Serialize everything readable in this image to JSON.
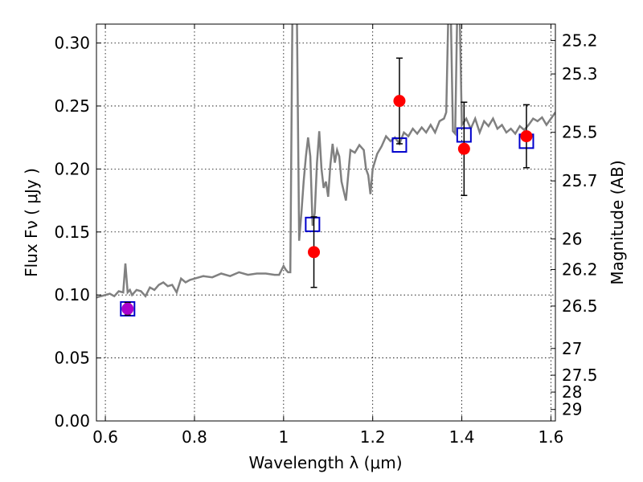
{
  "chart_data": {
    "type": "scatter",
    "xlabel": "Wavelength  λ (μm)",
    "ylabel": "Flux  Fν  ( μJy )",
    "y2label": "Magnitude (AB)",
    "xlim": [
      0.58,
      1.61
    ],
    "ylim": [
      0.0,
      0.315
    ],
    "x_ticks": [
      0.6,
      0.8,
      1.0,
      1.2,
      1.4,
      1.6
    ],
    "x_tick_labels": [
      "0.6",
      "0.8",
      "1",
      "1.2",
      "1.4",
      "1.6"
    ],
    "y_ticks": [
      0.0,
      0.05,
      0.1,
      0.15,
      0.2,
      0.25,
      0.3
    ],
    "y_tick_labels": [
      "0.00",
      "0.05",
      "0.10",
      "0.15",
      "0.20",
      "0.25",
      "0.30"
    ],
    "mag_ticks": [
      25.2,
      25.3,
      25.5,
      25.7,
      26,
      26.2,
      26.5,
      27,
      27.5,
      28,
      29
    ],
    "mag_tick_labels": [
      "25.2",
      "25.3",
      "25.5",
      "25.7",
      "26",
      "26.2",
      "26.5",
      "27",
      "27.5",
      "28",
      "29"
    ],
    "grid": true,
    "series": [
      {
        "kind": "line",
        "color": "#808080",
        "x": [
          0.58,
          0.59,
          0.6,
          0.61,
          0.62,
          0.63,
          0.64,
          0.645,
          0.65,
          0.655,
          0.66,
          0.67,
          0.68,
          0.69,
          0.7,
          0.71,
          0.72,
          0.73,
          0.74,
          0.75,
          0.76,
          0.77,
          0.78,
          0.79,
          0.8,
          0.82,
          0.84,
          0.86,
          0.88,
          0.9,
          0.92,
          0.94,
          0.96,
          0.98,
          0.99,
          1.0,
          1.005,
          1.01,
          1.015,
          1.02,
          1.025,
          1.03,
          1.035,
          1.04,
          1.045,
          1.05,
          1.055,
          1.06,
          1.065,
          1.07,
          1.075,
          1.08,
          1.085,
          1.09,
          1.095,
          1.1,
          1.105,
          1.11,
          1.115,
          1.12,
          1.125,
          1.13,
          1.14,
          1.15,
          1.16,
          1.17,
          1.18,
          1.185,
          1.19,
          1.195,
          1.2,
          1.21,
          1.22,
          1.23,
          1.24,
          1.25,
          1.26,
          1.27,
          1.28,
          1.29,
          1.3,
          1.31,
          1.32,
          1.33,
          1.34,
          1.35,
          1.36,
          1.365,
          1.37,
          1.375,
          1.38,
          1.385,
          1.39,
          1.395,
          1.4,
          1.41,
          1.42,
          1.43,
          1.44,
          1.45,
          1.46,
          1.47,
          1.48,
          1.49,
          1.5,
          1.51,
          1.52,
          1.53,
          1.54,
          1.55,
          1.56,
          1.57,
          1.58,
          1.59,
          1.6,
          1.61
        ],
        "y": [
          0.098,
          0.099,
          0.1,
          0.101,
          0.099,
          0.103,
          0.102,
          0.125,
          0.102,
          0.104,
          0.1,
          0.104,
          0.103,
          0.099,
          0.106,
          0.104,
          0.108,
          0.11,
          0.107,
          0.108,
          0.102,
          0.113,
          0.11,
          0.112,
          0.113,
          0.115,
          0.114,
          0.117,
          0.115,
          0.118,
          0.116,
          0.117,
          0.117,
          0.116,
          0.116,
          0.123,
          0.12,
          0.118,
          0.118,
          0.33,
          0.33,
          0.315,
          0.143,
          0.165,
          0.19,
          0.21,
          0.225,
          0.21,
          0.155,
          0.165,
          0.205,
          0.23,
          0.2,
          0.185,
          0.19,
          0.178,
          0.203,
          0.22,
          0.205,
          0.215,
          0.21,
          0.19,
          0.175,
          0.215,
          0.213,
          0.219,
          0.215,
          0.2,
          0.195,
          0.18,
          0.2,
          0.212,
          0.218,
          0.226,
          0.222,
          0.225,
          0.22,
          0.229,
          0.226,
          0.232,
          0.228,
          0.233,
          0.229,
          0.235,
          0.229,
          0.238,
          0.24,
          0.245,
          0.33,
          0.33,
          0.23,
          0.228,
          0.33,
          0.33,
          0.235,
          0.24,
          0.232,
          0.24,
          0.229,
          0.238,
          0.234,
          0.24,
          0.232,
          0.235,
          0.229,
          0.232,
          0.228,
          0.234,
          0.231,
          0.235,
          0.24,
          0.238,
          0.241,
          0.235,
          0.24,
          0.245
        ]
      },
      {
        "kind": "points",
        "marker": "open-square",
        "color": "#0000cc",
        "x": [
          0.65,
          1.065,
          1.26,
          1.405,
          1.545
        ],
        "y": [
          0.089,
          0.156,
          0.219,
          0.227,
          0.222
        ]
      },
      {
        "kind": "points",
        "marker": "filled-circle",
        "color": "#ff0000",
        "x": [
          0.65,
          1.068,
          1.26,
          1.405,
          1.545
        ],
        "y": [
          0.089,
          0.134,
          0.254,
          0.216,
          0.226
        ],
        "yerr": [
          0.005,
          0.028,
          0.034,
          0.037,
          0.025
        ]
      }
    ]
  }
}
